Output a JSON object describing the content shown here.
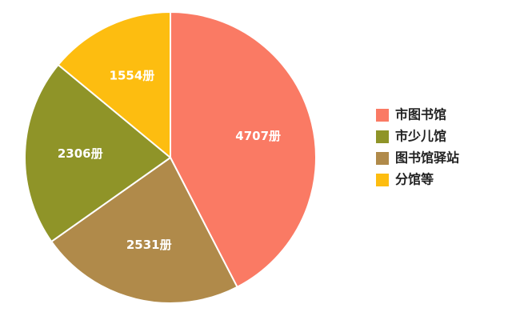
{
  "chart_data": {
    "type": "pie",
    "categories": [
      "市图书馆",
      "图书馆驿站",
      "市少儿馆",
      "分馆等"
    ],
    "values": [
      4707,
      2531,
      2306,
      1554
    ],
    "value_labels": [
      "4707册",
      "2531册",
      "2306册",
      "1554册"
    ],
    "colors": [
      "#fa7a64",
      "#b08a4a",
      "#8f9428",
      "#fdbd10"
    ],
    "legend": [
      "市图书馆",
      "市少儿馆",
      "图书馆驿站",
      "分馆等"
    ]
  }
}
